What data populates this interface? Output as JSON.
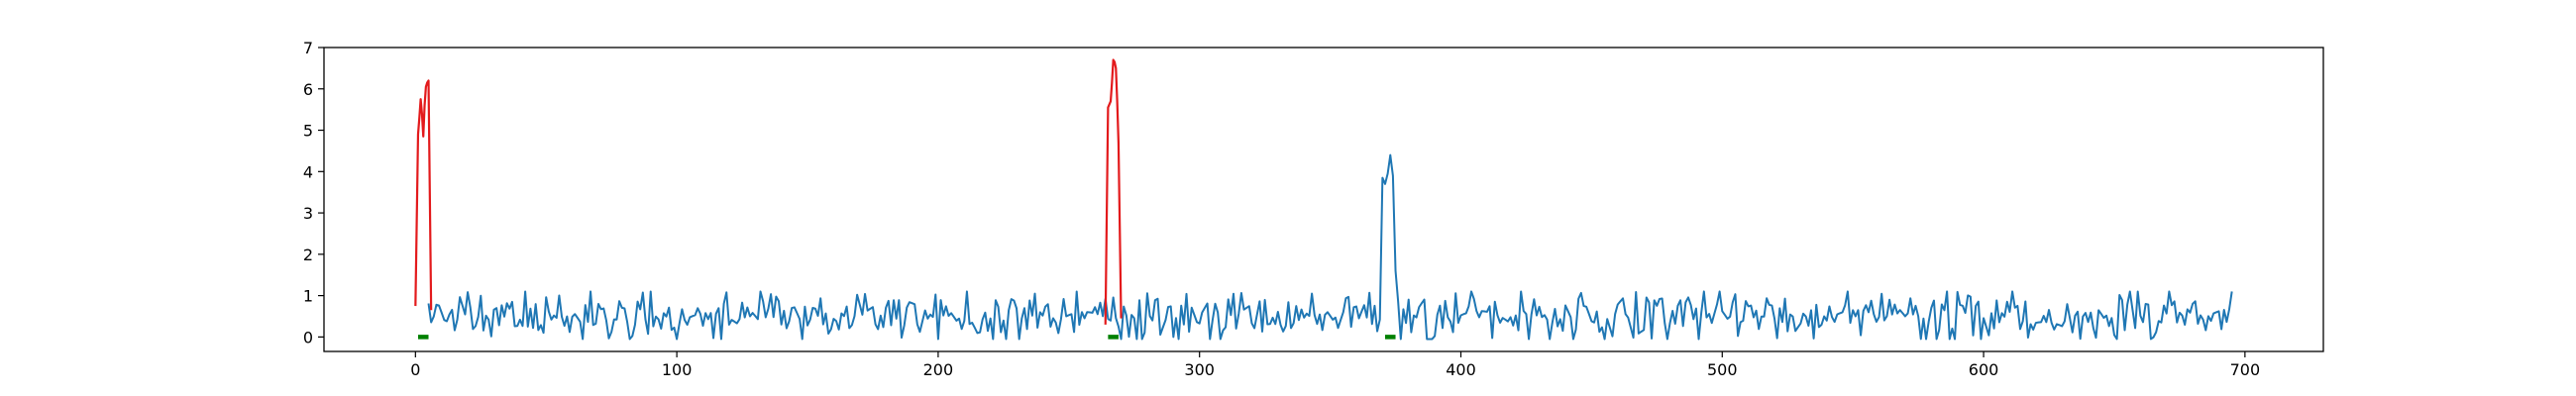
{
  "chart_data": {
    "type": "line",
    "title": "",
    "xlabel": "",
    "ylabel": "",
    "xlim": [
      -35,
      730
    ],
    "ylim": [
      -0.35,
      7.0
    ],
    "xticks": [
      0,
      100,
      200,
      300,
      400,
      500,
      600,
      700
    ],
    "yticks": [
      0,
      1,
      2,
      3,
      4,
      5,
      6,
      7
    ],
    "grid": false,
    "legend": "none",
    "colors": {
      "signal": "#1f77b4",
      "highlight": "#e31a1c",
      "marker": "#008000",
      "axes": "#000000",
      "background": "#ffffff"
    },
    "series": [
      {
        "role": "signal",
        "color": "#1f77b4",
        "generator": {
          "x_start": 5,
          "x_end": 695,
          "baseline_mean": 0.5,
          "baseline_amplitude": 0.3,
          "seed": 11,
          "peaks": [
            {
              "x": [
                370,
                371,
                372,
                373,
                374,
                375,
                376
              ],
              "y": [
                3.85,
                3.7,
                3.95,
                4.4,
                3.9,
                1.6,
                0.85
              ]
            }
          ]
        }
      },
      {
        "role": "highlight",
        "color": "#e31a1c",
        "segments": [
          {
            "x": [
              0,
              1,
              1.5,
              2,
              2.5,
              3,
              3.5,
              4,
              4.5,
              5,
              6
            ],
            "y": [
              0.75,
              4.9,
              5.3,
              5.75,
              5.4,
              4.85,
              5.6,
              6.05,
              6.15,
              6.2,
              0.65
            ]
          },
          {
            "x": [
              264,
              265,
              266,
              266.5,
              267,
              267.5,
              268,
              268.5,
              269,
              270
            ],
            "y": [
              0.3,
              5.55,
              5.7,
              6.15,
              6.7,
              6.65,
              6.5,
              5.7,
              4.7,
              0.45
            ]
          }
        ]
      }
    ],
    "markers": [
      {
        "color": "#008000",
        "x": [
          1,
          5
        ],
        "y": 0
      },
      {
        "color": "#008000",
        "x": [
          265,
          269
        ],
        "y": 0
      },
      {
        "color": "#008000",
        "x": [
          371,
          375
        ],
        "y": 0
      }
    ]
  }
}
